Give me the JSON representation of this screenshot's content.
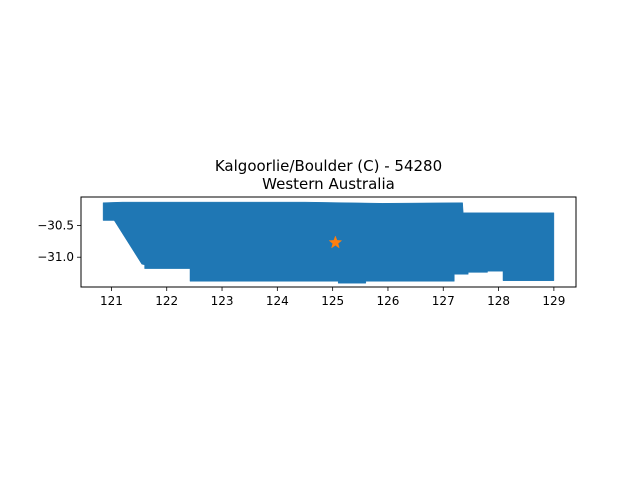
{
  "chart_data": {
    "type": "map",
    "title": "Kalgoorlie/Boulder (C) - 54280",
    "subtitle": "Western Australia",
    "xlim": [
      120.45,
      129.4
    ],
    "ylim": [
      -31.47,
      -30.05
    ],
    "x_ticks": [
      121,
      122,
      123,
      124,
      125,
      126,
      127,
      128,
      129
    ],
    "y_ticks": [
      -31.0,
      -30.5
    ],
    "y_tick_labels": [
      "−31.0",
      "−30.5"
    ],
    "fill_color": "#1f77b4",
    "marker_color": "#ff7f0e",
    "marker_shape": "star",
    "marker": {
      "lon": 125.05,
      "lat": -30.77
    },
    "region_polygon": [
      [
        120.85,
        -30.14
      ],
      [
        121.2,
        -30.13
      ],
      [
        123.0,
        -30.13
      ],
      [
        124.5,
        -30.13
      ],
      [
        125.9,
        -30.15
      ],
      [
        127.35,
        -30.14
      ],
      [
        127.36,
        -30.3
      ],
      [
        129.0,
        -30.3
      ],
      [
        129.0,
        -31.37
      ],
      [
        128.08,
        -31.37
      ],
      [
        128.08,
        -31.22
      ],
      [
        127.8,
        -31.22
      ],
      [
        127.8,
        -31.24
      ],
      [
        127.45,
        -31.24
      ],
      [
        127.45,
        -31.27
      ],
      [
        127.2,
        -31.27
      ],
      [
        127.2,
        -31.38
      ],
      [
        125.6,
        -31.38
      ],
      [
        125.6,
        -31.41
      ],
      [
        125.1,
        -31.41
      ],
      [
        125.1,
        -31.38
      ],
      [
        122.42,
        -31.38
      ],
      [
        122.42,
        -31.18
      ],
      [
        121.6,
        -31.18
      ],
      [
        121.6,
        -31.12
      ],
      [
        121.55,
        -31.11
      ],
      [
        121.05,
        -30.42
      ],
      [
        120.85,
        -30.42
      ]
    ]
  }
}
